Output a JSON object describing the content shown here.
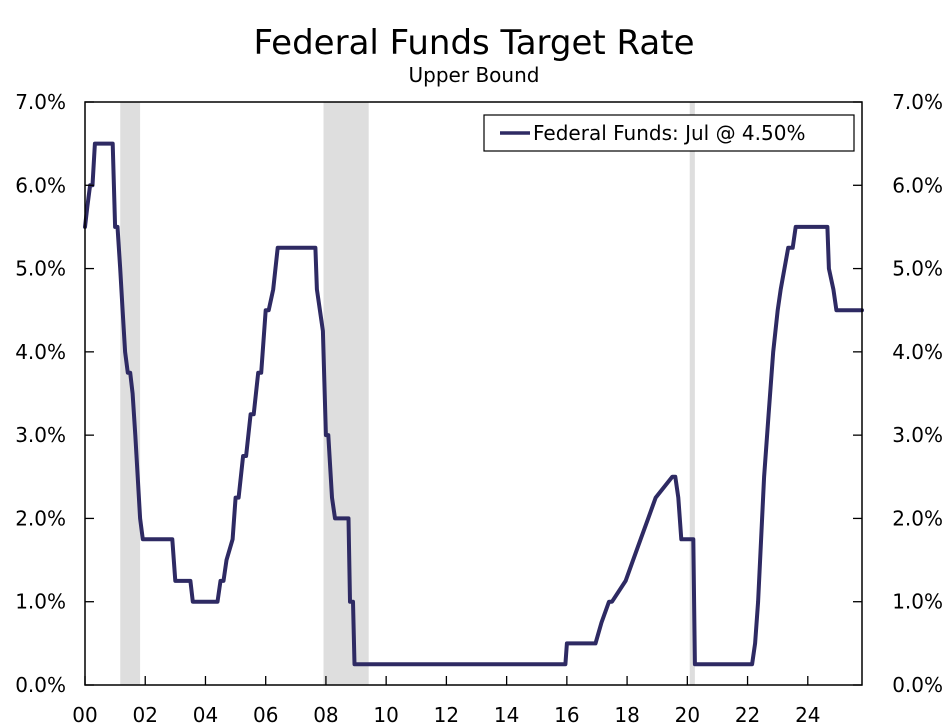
{
  "chart_data": {
    "type": "line",
    "title": "Federal Funds Target Rate",
    "subtitle": "Upper Bound",
    "xlabel": "",
    "ylabel": "",
    "x_tick_labels": [
      "00",
      "02",
      "04",
      "06",
      "08",
      "10",
      "12",
      "14",
      "16",
      "18",
      "20",
      "22",
      "24"
    ],
    "x_tick_years": [
      2000,
      2002,
      2004,
      2006,
      2008,
      2010,
      2012,
      2014,
      2016,
      2018,
      2020,
      2022,
      2024
    ],
    "xlim": [
      2000,
      2025.8
    ],
    "y_tick_labels": [
      "0.0%",
      "1.0%",
      "2.0%",
      "3.0%",
      "4.0%",
      "5.0%",
      "6.0%",
      "7.0%"
    ],
    "ylim": [
      0,
      7
    ],
    "dual_y_axis": true,
    "grid": false,
    "legend_position": "top-right",
    "recession_shading": [
      {
        "start": 2001.17,
        "end": 2001.83
      },
      {
        "start": 2007.92,
        "end": 2009.42
      },
      {
        "start": 2020.08,
        "end": 2020.25
      }
    ],
    "series": [
      {
        "name": "Federal Funds: Jul @ 4.50%",
        "color": "#2e2a63",
        "x": [
          2000.0,
          2000.08,
          2000.17,
          2000.25,
          2000.33,
          2000.42,
          2000.5,
          2000.92,
          2001.0,
          2001.08,
          2001.17,
          2001.25,
          2001.33,
          2001.42,
          2001.5,
          2001.58,
          2001.67,
          2001.75,
          2001.83,
          2001.92,
          2002.0,
          2002.9,
          2003.0,
          2003.5,
          2003.58,
          2004.4,
          2004.5,
          2004.6,
          2004.7,
          2004.9,
          2005.0,
          2005.1,
          2005.25,
          2005.35,
          2005.5,
          2005.6,
          2005.75,
          2005.85,
          2006.0,
          2006.1,
          2006.25,
          2006.4,
          2006.5,
          2007.65,
          2007.7,
          2007.8,
          2007.9,
          2008.0,
          2008.08,
          2008.2,
          2008.3,
          2008.75,
          2008.8,
          2008.9,
          2008.95,
          2015.95,
          2016.0,
          2016.95,
          2017.15,
          2017.4,
          2017.5,
          2017.95,
          2018.2,
          2018.45,
          2018.7,
          2018.95,
          2019.5,
          2019.6,
          2019.7,
          2019.8,
          2020.2,
          2020.25,
          2022.15,
          2022.25,
          2022.35,
          2022.45,
          2022.55,
          2022.7,
          2022.85,
          2023.0,
          2023.1,
          2023.35,
          2023.5,
          2023.6,
          2024.65,
          2024.7,
          2024.85,
          2024.95,
          2025.8
        ],
        "values": [
          5.5,
          5.75,
          6.0,
          6.0,
          6.5,
          6.5,
          6.5,
          6.5,
          5.5,
          5.5,
          5.0,
          4.5,
          4.0,
          3.75,
          3.75,
          3.5,
          3.0,
          2.5,
          2.0,
          1.75,
          1.75,
          1.75,
          1.25,
          1.25,
          1.0,
          1.0,
          1.25,
          1.25,
          1.5,
          1.75,
          2.25,
          2.25,
          2.75,
          2.75,
          3.25,
          3.25,
          3.75,
          3.75,
          4.5,
          4.5,
          4.75,
          5.25,
          5.25,
          5.25,
          4.75,
          4.5,
          4.25,
          3.0,
          3.0,
          2.25,
          2.0,
          2.0,
          1.0,
          1.0,
          0.25,
          0.25,
          0.5,
          0.5,
          0.75,
          1.0,
          1.0,
          1.25,
          1.5,
          1.75,
          2.0,
          2.25,
          2.5,
          2.5,
          2.25,
          1.75,
          1.75,
          0.25,
          0.25,
          0.5,
          1.0,
          1.75,
          2.5,
          3.25,
          4.0,
          4.5,
          4.75,
          5.25,
          5.25,
          5.5,
          5.5,
          5.0,
          4.75,
          4.5,
          4.5
        ]
      }
    ]
  }
}
